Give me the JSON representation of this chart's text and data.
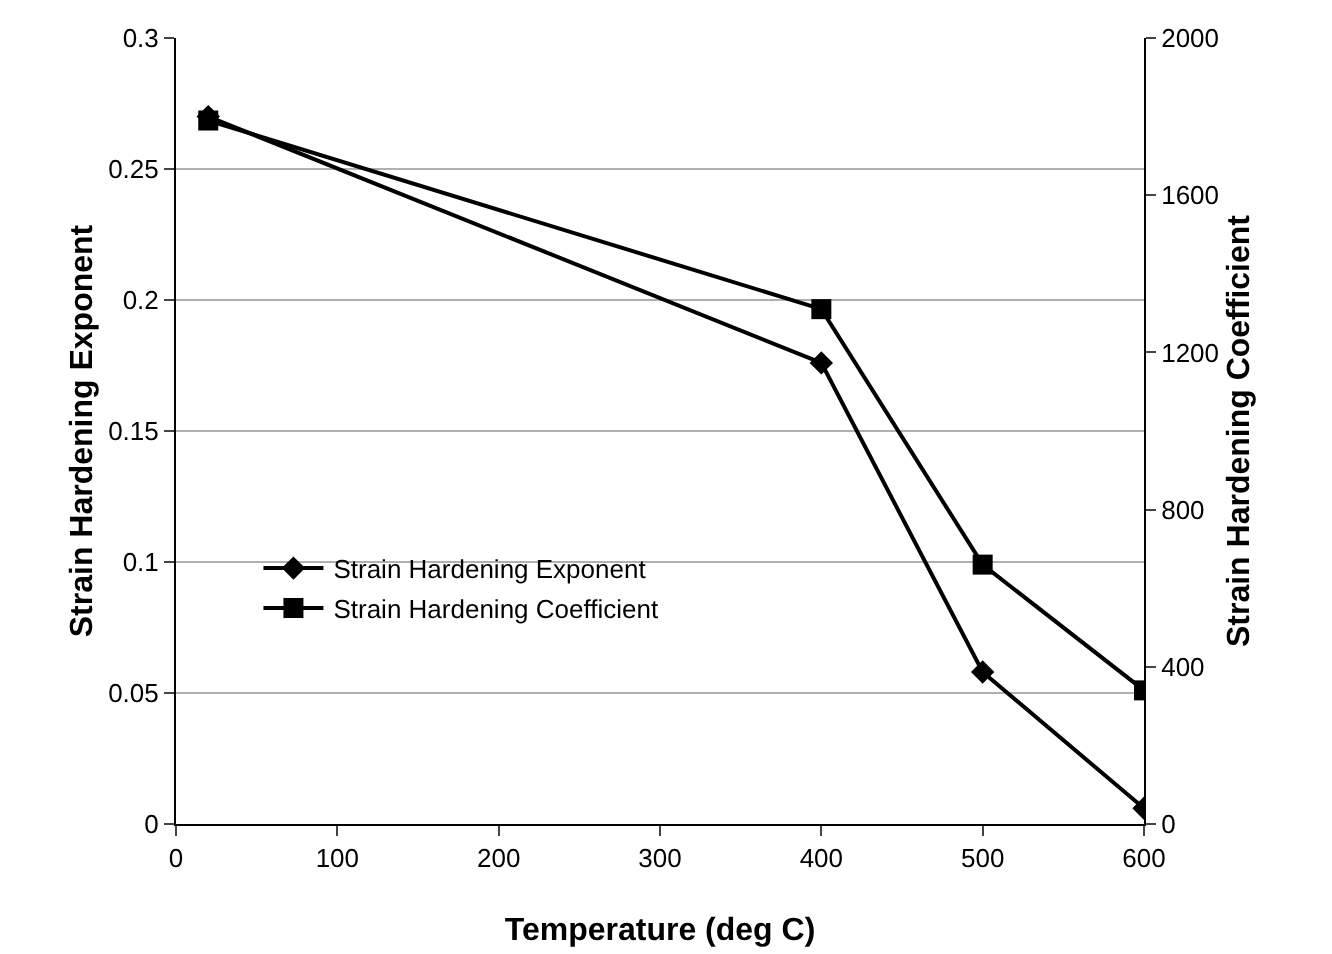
{
  "chart_data": {
    "type": "line",
    "xlabel": "Temperature (deg C)",
    "ylabel": "Strain Hardening Exponent",
    "y2label": "Strain Hardening Coefficient",
    "x": [
      20,
      400,
      500,
      600
    ],
    "series": [
      {
        "name": "Strain Hardening Exponent",
        "color": "#000000",
        "marker": "diamond",
        "values": [
          0.27,
          0.176,
          0.058,
          0.006
        ]
      },
      {
        "name": "Strain Hardening Coefficient",
        "color": "#000000",
        "marker": "square",
        "axis": "y2",
        "values": [
          1790,
          1310,
          660,
          340
        ]
      }
    ],
    "xlim": [
      0,
      600
    ],
    "xticks": [
      0,
      100,
      200,
      300,
      400,
      500,
      600
    ],
    "ylim": [
      0,
      0.3
    ],
    "yticks": [
      0,
      0.05,
      0.1,
      0.15,
      0.2,
      0.25,
      0.3
    ],
    "y2lim": [
      0,
      2000
    ],
    "y2ticks": [
      0,
      400,
      800,
      1200,
      1600,
      2000
    ],
    "grid": "y",
    "legend": "left",
    "line_style": "solid"
  }
}
